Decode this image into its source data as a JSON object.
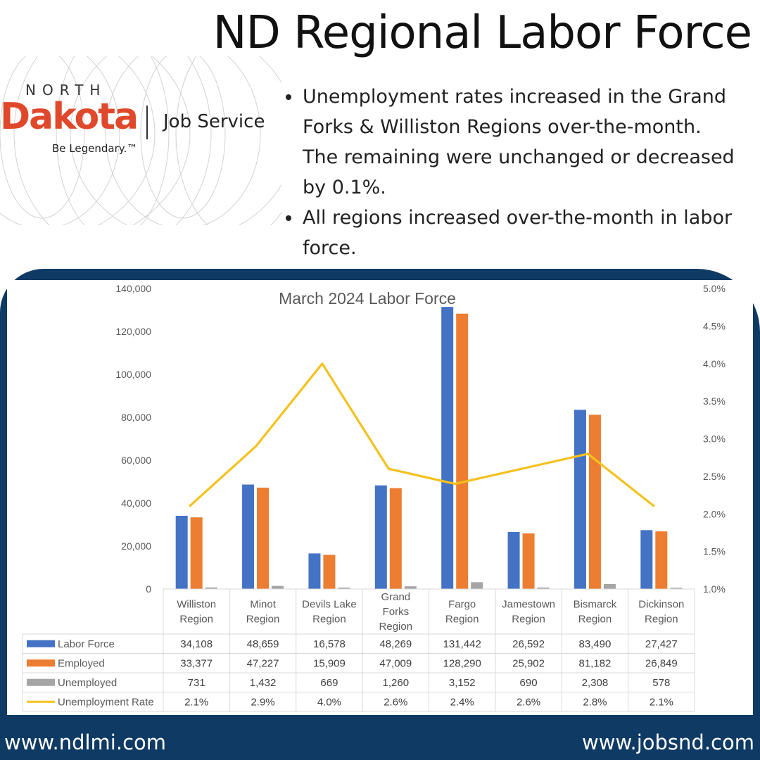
{
  "header": {
    "title": "ND Regional Labor Force"
  },
  "logo": {
    "north": "NORTH",
    "dakota": "Dakota",
    "job_service": "Job Service",
    "tagline": "Be Legendary.™"
  },
  "bullets": [
    "Unemployment rates increased in the Grand Forks & Williston Regions over-the-month. The remaining were unchanged or decreased by 0.1%.",
    "All regions increased over-the-month in labor force."
  ],
  "footer": {
    "left_url": "www.ndlmi.com",
    "right_url": "www.jobsnd.com"
  },
  "colors": {
    "labor_force": "#4472c4",
    "employed": "#ed7d31",
    "unemployed": "#a5a5a5",
    "unemployment_rate": "#f5c11e",
    "panel": "#0e3a64",
    "brand": "#e0482b"
  },
  "chart_data": {
    "type": "bar",
    "title": "March 2024 Labor Force",
    "categories": [
      [
        "Williston",
        "Region"
      ],
      [
        "Minot",
        "Region"
      ],
      [
        "Devils Lake",
        "Region"
      ],
      [
        "Grand",
        "Forks",
        "Region"
      ],
      [
        "Fargo",
        "Region"
      ],
      [
        "Jamestown",
        "Region"
      ],
      [
        "Bismarck",
        "Region"
      ],
      [
        "Dickinson",
        "Region"
      ]
    ],
    "series": [
      {
        "name": "Labor Force",
        "values": [
          34108,
          48659,
          16578,
          48269,
          131442,
          26592,
          83490,
          27427
        ],
        "display": [
          "34,108",
          "48,659",
          "16,578",
          "48,269",
          "131,442",
          "26,592",
          "83,490",
          "27,427"
        ]
      },
      {
        "name": "Employed",
        "values": [
          33377,
          47227,
          15909,
          47009,
          128290,
          25902,
          81182,
          26849
        ],
        "display": [
          "33,377",
          "47,227",
          "15,909",
          "47,009",
          "128,290",
          "25,902",
          "81,182",
          "26,849"
        ]
      },
      {
        "name": "Unemployed",
        "values": [
          731,
          1432,
          669,
          1260,
          3152,
          690,
          2308,
          578
        ],
        "display": [
          "731",
          "1,432",
          "669",
          "1,260",
          "3,152",
          "690",
          "2,308",
          "578"
        ]
      }
    ],
    "line_series": {
      "name": "Unemployment Rate",
      "values": [
        2.1,
        2.9,
        4.0,
        2.6,
        2.4,
        2.6,
        2.8,
        2.1
      ],
      "display": [
        "2.1%",
        "2.9%",
        "4.0%",
        "2.6%",
        "2.4%",
        "2.6%",
        "2.8%",
        "2.1%"
      ]
    },
    "y_left": {
      "min": 0,
      "max": 140000,
      "ticks": [
        "0",
        "20,000",
        "40,000",
        "60,000",
        "80,000",
        "100,000",
        "120,000",
        "140,000"
      ]
    },
    "y_right": {
      "min": 1.0,
      "max": 5.0,
      "ticks": [
        "1.0%",
        "1.5%",
        "2.0%",
        "2.5%",
        "3.0%",
        "3.5%",
        "4.0%",
        "4.5%",
        "5.0%"
      ]
    },
    "grid": false,
    "legend": "data-table"
  }
}
